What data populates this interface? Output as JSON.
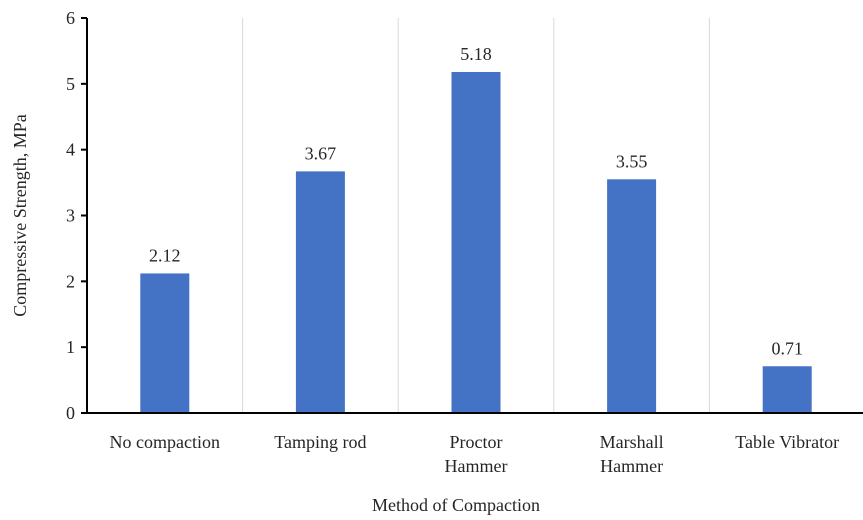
{
  "chart_data": {
    "type": "bar",
    "title": "",
    "xlabel": "Method of Compaction",
    "ylabel": "Compressive Strength, MPa",
    "categories": [
      [
        "No compaction"
      ],
      [
        "Tamping rod"
      ],
      [
        "Proctor",
        "Hammer"
      ],
      [
        "Marshall",
        "Hammer"
      ],
      [
        "Table Vibrator"
      ]
    ],
    "values": [
      2.12,
      3.67,
      5.18,
      3.55,
      0.71
    ],
    "data_labels": [
      "2.12",
      "3.67",
      "5.18",
      "3.55",
      "0.71"
    ],
    "ylim": [
      0,
      6
    ],
    "yticks": [
      "0",
      "1",
      "2",
      "3",
      "4",
      "5",
      "6"
    ],
    "grid": "vertical",
    "legend": "none",
    "colors": {
      "bar": "#4472C4",
      "axis": "#000000",
      "grid": "#D9D9D9"
    }
  }
}
